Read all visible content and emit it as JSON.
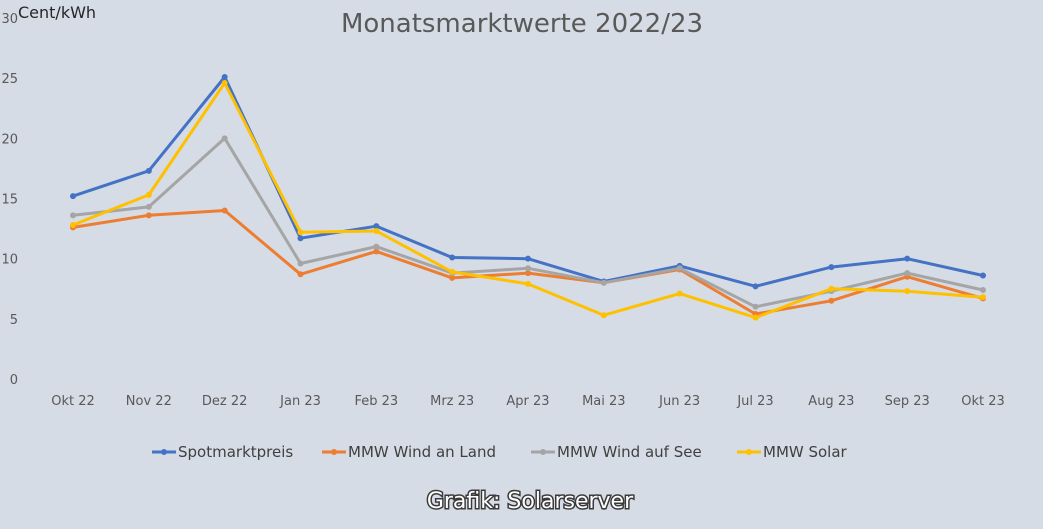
{
  "chart_data": {
    "type": "line",
    "title": "Monatsmarktwerte 2022/23",
    "unit_label": "Cent/kWh",
    "xlabel": "",
    "ylabel": "",
    "ylim": [
      0,
      30
    ],
    "y_ticks": [
      "0",
      "5",
      "10",
      "15",
      "20",
      "25",
      "30"
    ],
    "categories": [
      "Okt 22",
      "Nov 22",
      "Dez 22",
      "Jan 23",
      "Feb 23",
      "Mrz 23",
      "Apr 23",
      "Mai 23",
      "Jun 23",
      "Jul 23",
      "Aug 23",
      "Sep 23",
      "Okt 23"
    ],
    "grid": false,
    "legend_position": "bottom",
    "series": [
      {
        "name": "Spotmarktpreis",
        "color": "#4472c4",
        "values": [
          15.2,
          17.3,
          25.1,
          11.7,
          12.7,
          10.1,
          10.0,
          8.1,
          9.4,
          7.7,
          9.3,
          10.0,
          8.6
        ]
      },
      {
        "name": "MMW Wind an Land",
        "color": "#ed7d31",
        "values": [
          12.6,
          13.6,
          14.0,
          8.7,
          10.6,
          8.4,
          8.8,
          8.0,
          9.1,
          5.4,
          6.5,
          8.5,
          6.7
        ]
      },
      {
        "name": "MMW Wind auf See",
        "color": "#a5a5a5",
        "values": [
          13.6,
          14.3,
          20.0,
          9.6,
          11.0,
          8.8,
          9.2,
          8.0,
          9.2,
          6.0,
          7.3,
          8.8,
          7.4
        ]
      },
      {
        "name": "MMW Solar",
        "color": "#ffc000",
        "values": [
          12.8,
          15.3,
          24.6,
          12.2,
          12.3,
          8.9,
          7.9,
          5.3,
          7.1,
          5.1,
          7.5,
          7.3,
          6.8
        ]
      }
    ]
  },
  "credit": "Grafik: Solarserver"
}
